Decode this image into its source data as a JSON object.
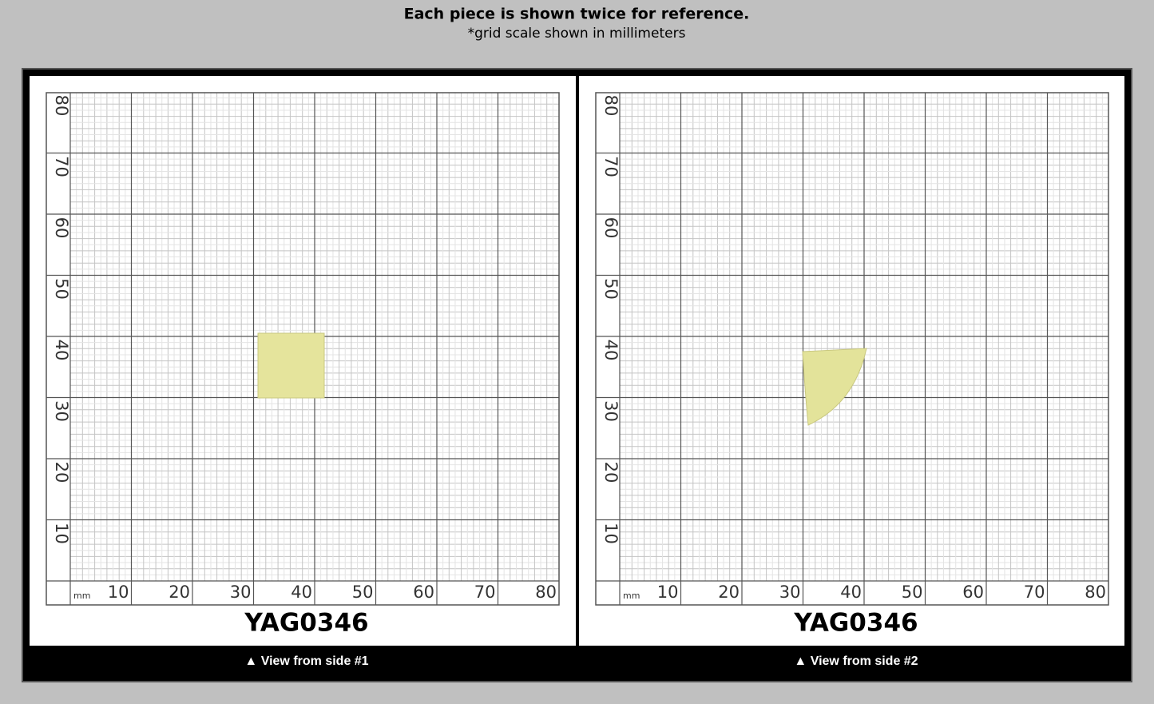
{
  "header": {
    "title": "Each piece is shown twice for reference.",
    "subtitle": "*grid scale shown in millimeters"
  },
  "panels": [
    {
      "label": "YAG0346",
      "caption": "▲ View from side #1"
    },
    {
      "label": "YAG0346",
      "caption": "▲ View from side #2"
    }
  ],
  "grid": {
    "unit": "mm",
    "x_labels": [
      10,
      20,
      30,
      40,
      50,
      60,
      70,
      80
    ],
    "y_labels": [
      10,
      20,
      30,
      40,
      50,
      60,
      70,
      80
    ]
  }
}
